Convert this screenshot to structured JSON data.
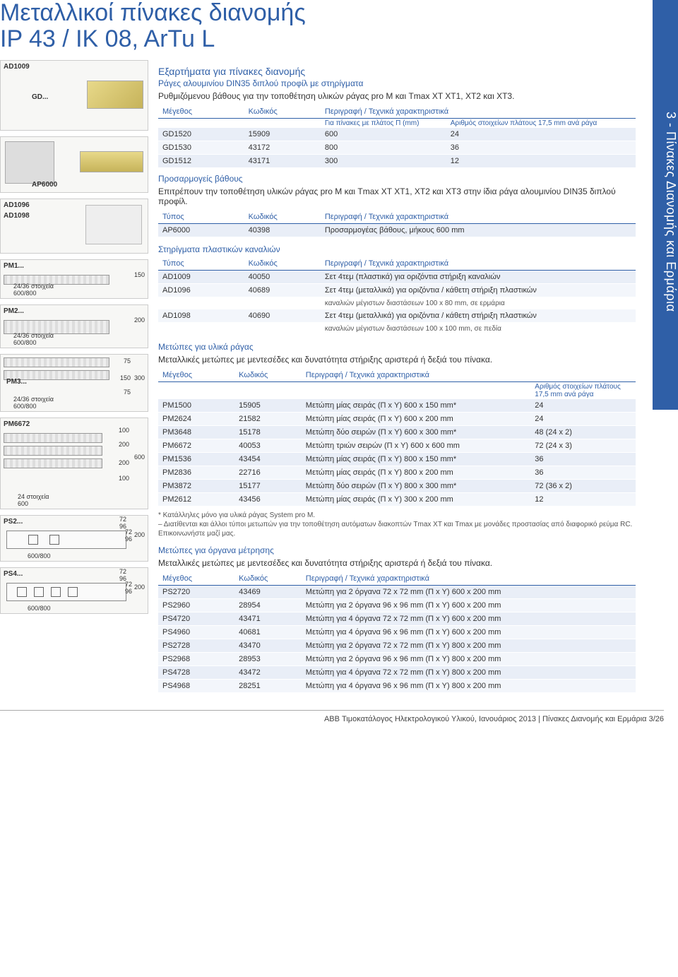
{
  "page": {
    "title_line1": "Μεταλλικοί πίνακες διανομής",
    "title_line2": "IP 43 / IK 08, ArTu L",
    "side_tab": "3 - Πίνακες Διανομής και Ερμάρια",
    "footer": "ABB Τιμοκατάλογος Ηλεκτρολογικού Υλικού, Ιανουάριος 2013 | Πίνακες Διανομής και Ερμάρια  3/26"
  },
  "colors": {
    "accent": "#2f5fa7",
    "row_bg": "#e9eef7",
    "row_bg_alt": "#f3f6fb"
  },
  "left_labels": {
    "ad1009": "AD1009",
    "gd": "GD...",
    "ap6000": "AP6000",
    "ad1096": "AD1096",
    "ad1098": "AD1098",
    "pm1": "PM1...",
    "pm2": "PM2...",
    "pm3": "PM3...",
    "pm6672": "PM6672",
    "ps2": "PS2...",
    "ps4": "PS4...",
    "dim_24_36": "24/36 στοιχεία",
    "dim_600_800": "600/800",
    "dim_24": "24 στοιχεία",
    "dim_600": "600",
    "d150": "150",
    "d200": "200",
    "d300": "300",
    "d75": "75",
    "d100": "100",
    "d600b": "600",
    "d72": "72",
    "d96": "96"
  },
  "sec1": {
    "title": "Εξαρτήματα για πίνακες διανομής",
    "sub": "Ράγες αλουμινίου DIN35 διπλού προφίλ με στηρίγματα",
    "body": "Ρυθμιζόμενου βάθους για την τοποθέτηση υλικών ράγας pro M και Tmax XT XT1, XT2 και XT3.",
    "col1": "Μέγεθος",
    "col2": "Κωδικός",
    "col3": "Περιγραφή / Τεχνικά χαρακτηριστικά",
    "sub_col_a": "Για πίνακες με πλάτος Π (mm)",
    "sub_col_b": "Αριθμός στοιχείων πλάτους 17,5 mm ανά ράγα",
    "rows": [
      [
        "GD1520",
        "15909",
        "600",
        "24"
      ],
      [
        "GD1530",
        "43172",
        "800",
        "36"
      ],
      [
        "GD1512",
        "43171",
        "300",
        "12"
      ]
    ]
  },
  "sec2": {
    "title": "Προσαρμογείς βάθους",
    "body": "Επιτρέπουν την τοποθέτηση υλικών ράγας pro M και Tmax XT XT1, XT2 και XT3 στην ίδια ράγα αλουμινίου DIN35 διπλού προφίλ.",
    "col1": "Τύπος",
    "col2": "Κωδικός",
    "col3": "Περιγραφή / Τεχνικά χαρακτηριστικά",
    "rows": [
      [
        "AP6000",
        "40398",
        "Προσαρμογέας βάθους, μήκους 600 mm"
      ]
    ]
  },
  "sec3": {
    "title": "Στηρίγματα πλαστικών καναλιών",
    "col1": "Τύπος",
    "col2": "Κωδικός",
    "col3": "Περιγραφή / Τεχνικά χαρακτηριστικά",
    "rows": [
      [
        "AD1009",
        "40050",
        "Σετ 4τεμ (πλαστικά) για οριζόντια στήριξη καναλιών"
      ],
      [
        "AD1096",
        "40689",
        "Σετ 4τεμ (μεταλλικά) για οριζόντια / κάθετη στήριξη πλαστικών"
      ],
      [
        "",
        "",
        "καναλιών μέγιστων διαστάσεων 100 x 80 mm, σε ερμάρια"
      ],
      [
        "AD1098",
        "40690",
        "Σετ 4τεμ (μεταλλικά) για οριζόντια / κάθετη στήριξη πλαστικών"
      ],
      [
        "",
        "",
        "καναλιών μέγιστων διαστάσεων 100 x 100 mm, σε πεδία"
      ]
    ]
  },
  "sec4": {
    "title": "Μετώπες για υλικά ράγας",
    "body": "Μεταλλικές μετώπες με μεντεσέδες και δυνατότητα στήριξης αριστερά ή δεξιά του πίνακα.",
    "col1": "Μέγεθος",
    "col2": "Κωδικός",
    "col3": "Περιγραφή / Τεχνικά χαρακτηριστικά",
    "sub_col": "Αριθμός στοιχείων πλάτους 17,5 mm ανά ράγα",
    "rows": [
      [
        "PM1500",
        "15905",
        "Μετώπη μίας σειράς (Π x Υ) 600 x 150 mm*",
        "24"
      ],
      [
        "PM2624",
        "21582",
        "Μετώπη μίας σειράς (Π x Υ) 600 x 200 mm",
        "24"
      ],
      [
        "PM3648",
        "15178",
        "Μετώπη δύο σειρών (Π x Υ) 600 x 300 mm*",
        "48 (24 x 2)"
      ],
      [
        "PM6672",
        "40053",
        "Μετώπη τριών σειρών (Π x Υ) 600 x 600 mm",
        "72 (24 x 3)"
      ],
      [
        "PM1536",
        "43454",
        "Μετώπη μίας σειράς (Π x Υ) 800 x 150 mm*",
        "36"
      ],
      [
        "PM2836",
        "22716",
        "Μετώπη μίας σειράς (Π x Υ) 800 x 200 mm",
        "36"
      ],
      [
        "PM3872",
        "15177",
        "Μετώπη δύο σειρών (Π x Υ) 800 x 300 mm*",
        "72 (36 x 2)"
      ],
      [
        "PM2612",
        "43456",
        "Μετώπη μίας σειράς (Π x Υ) 300 x 200 mm",
        "12"
      ]
    ],
    "note1": "* Κατάλληλες μόνο για υλικά ράγας System pro M.",
    "note2": "– Διατίθενται και άλλοι τύποι μετωπών για την τοποθέτηση αυτόματων διακοπτών Tmax XT και Tmax με μονάδες προστασίας από διαφορικό ρεύμα RC. Επικοινωνήστε μαζί μας."
  },
  "sec5": {
    "title": "Μετώπες για όργανα μέτρησης",
    "body": "Μεταλλικές μετώπες με μεντεσέδες και δυνατότητα στήριξης αριστερά ή δεξιά του πίνακα.",
    "col1": "Μέγεθος",
    "col2": "Κωδικός",
    "col3": "Περιγραφή / Τεχνικά χαρακτηριστικά",
    "rows": [
      [
        "PS2720",
        "43469",
        "Μετώπη για 2 όργανα 72 x 72 mm (Π x Υ) 600 x 200 mm"
      ],
      [
        "PS2960",
        "28954",
        "Μετώπη για 2 όργανα 96 x 96 mm (Π x Υ) 600 x 200 mm"
      ],
      [
        "PS4720",
        "43471",
        "Μετώπη για 4 όργανα 72 x 72 mm (Π x Υ) 600 x 200 mm"
      ],
      [
        "PS4960",
        "40681",
        "Μετώπη για 4 όργανα  96 x 96 mm (Π x Υ) 600 x 200 mm"
      ],
      [
        "PS2728",
        "43470",
        "Μετώπη για 2 όργανα 72 x 72 mm (Π x Υ) 800 x 200 mm"
      ],
      [
        "PS2968",
        "28953",
        "Μετώπη για 2 όργανα 96 x 96 mm (Π x Υ) 800 x 200 mm"
      ],
      [
        "PS4728",
        "43472",
        "Μετώπη για 4 όργανα 72 x 72 mm (Π x Υ) 800 x 200 mm"
      ],
      [
        "PS4968",
        "28251",
        "Μετώπη για 4 όργανα  96 x 96 mm (Π x Υ) 800 x 200 mm"
      ]
    ]
  }
}
